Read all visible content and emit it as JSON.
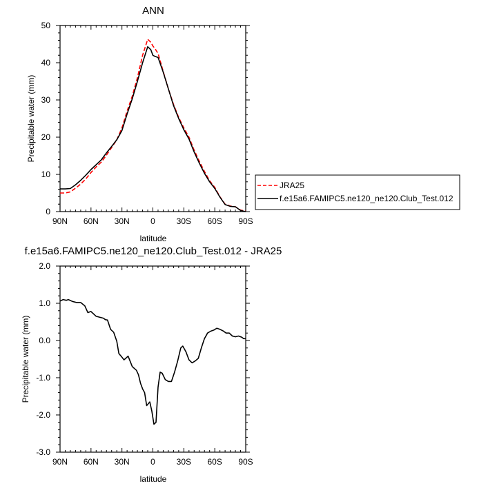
{
  "chart_data": [
    {
      "type": "line",
      "title": "ANN",
      "xlabel": "latitude",
      "ylabel": "Precipitable water (mm)",
      "xlim": [
        90,
        -90
      ],
      "ylim": [
        0,
        50
      ],
      "x_tick_values": [
        90,
        60,
        30,
        0,
        -30,
        -60,
        -90
      ],
      "x_tick_labels": [
        "90N",
        "60N",
        "30N",
        "0",
        "30S",
        "60S",
        "90S"
      ],
      "y_tick_values": [
        0,
        10,
        20,
        30,
        40,
        50
      ],
      "y_tick_labels": [
        "0",
        "10",
        "20",
        "30",
        "40",
        "50"
      ],
      "grid": false,
      "legend_position": "right",
      "series": [
        {
          "name": "JRA25",
          "color": "#ff0000",
          "dash": "dashed",
          "x": [
            90,
            85,
            80,
            75,
            70,
            65,
            60,
            55,
            50,
            45,
            40,
            35,
            30,
            25,
            20,
            15,
            10,
            5,
            2,
            0,
            -2,
            -5,
            -10,
            -15,
            -20,
            -25,
            -30,
            -35,
            -40,
            -45,
            -50,
            -55,
            -60,
            -65,
            -70,
            -75,
            -80,
            -85,
            -90
          ],
          "y": [
            5.0,
            5.0,
            5.3,
            6.3,
            7.4,
            8.8,
            10.5,
            12.0,
            13.3,
            15.2,
            17.2,
            19.3,
            22.5,
            27.0,
            31.0,
            36.0,
            42.0,
            46.3,
            45.5,
            44.5,
            43.8,
            42.5,
            37.7,
            33.0,
            28.8,
            25.3,
            22.5,
            20.0,
            16.5,
            13.5,
            10.8,
            8.3,
            6.5,
            4.0,
            2.0,
            1.5,
            1.3,
            0.4,
            0.1
          ]
        },
        {
          "name": "f.e15a6.FAMIPC5.ne120_ne120.Club_Test.012",
          "color": "#000000",
          "dash": "solid",
          "x": [
            90,
            85,
            80,
            75,
            70,
            65,
            60,
            55,
            50,
            45,
            40,
            35,
            30,
            25,
            20,
            15,
            10,
            5,
            2,
            0,
            -2,
            -5,
            -10,
            -15,
            -20,
            -25,
            -30,
            -35,
            -40,
            -45,
            -50,
            -55,
            -60,
            -65,
            -70,
            -75,
            -80,
            -85,
            -90
          ],
          "y": [
            6.1,
            6.1,
            6.2,
            7.2,
            8.4,
            9.8,
            11.3,
            12.6,
            13.9,
            15.8,
            17.5,
            19.3,
            21.8,
            26.2,
            30.3,
            35.0,
            40.0,
            44.3,
            43.5,
            42.0,
            41.7,
            41.4,
            37.5,
            33.0,
            28.5,
            25.0,
            22.0,
            19.5,
            16.0,
            13.0,
            10.3,
            8.0,
            6.2,
            3.9,
            1.9,
            1.4,
            1.3,
            0.3,
            0.0
          ]
        }
      ]
    },
    {
      "type": "line",
      "title": "f.e15a6.FAMIPC5.ne120_ne120.Club_Test.012 - JRA25",
      "xlabel": "latitude",
      "ylabel": "Precipitable water (mm)",
      "xlim": [
        90,
        -90
      ],
      "ylim": [
        -3.0,
        2.0
      ],
      "x_tick_values": [
        90,
        60,
        30,
        0,
        -30,
        -60,
        -90
      ],
      "x_tick_labels": [
        "90N",
        "60N",
        "30N",
        "0",
        "30S",
        "60S",
        "90S"
      ],
      "y_tick_values": [
        -3.0,
        -2.0,
        -1.0,
        0.0,
        1.0,
        2.0
      ],
      "y_tick_labels": [
        "-3.0",
        "-2.0",
        "-1.0",
        "0.0",
        "1.0",
        "2.0"
      ],
      "grid": false,
      "series": [
        {
          "color": "#000000",
          "dash": "solid",
          "x": [
            90,
            87,
            84,
            82,
            78,
            74,
            70,
            66,
            63,
            60,
            55,
            51,
            48,
            46,
            44,
            41,
            38,
            35,
            33,
            30,
            28,
            26,
            24,
            20,
            16,
            14,
            12,
            10,
            8,
            6,
            3,
            1,
            -1,
            -3,
            -5,
            -7,
            -9,
            -12,
            -15,
            -18,
            -21,
            -24,
            -27,
            -29,
            -32,
            -35,
            -38,
            -41,
            -44,
            -47,
            -50,
            -53,
            -56,
            -59,
            -62,
            -65,
            -68,
            -71,
            -74,
            -77,
            -80,
            -83,
            -86,
            -88,
            -90
          ],
          "y": [
            1.06,
            1.1,
            1.08,
            1.1,
            1.05,
            1.02,
            1.02,
            0.93,
            0.75,
            0.78,
            0.65,
            0.62,
            0.6,
            0.56,
            0.55,
            0.3,
            0.22,
            -0.02,
            -0.35,
            -0.45,
            -0.52,
            -0.47,
            -0.42,
            -0.7,
            -0.8,
            -0.92,
            -1.15,
            -1.3,
            -1.4,
            -1.75,
            -1.65,
            -1.9,
            -2.25,
            -2.2,
            -1.25,
            -0.85,
            -0.88,
            -1.05,
            -1.1,
            -1.1,
            -0.85,
            -0.55,
            -0.2,
            -0.15,
            -0.3,
            -0.52,
            -0.6,
            -0.55,
            -0.48,
            -0.2,
            0.05,
            0.2,
            0.25,
            0.28,
            0.33,
            0.3,
            0.26,
            0.2,
            0.2,
            0.12,
            0.1,
            0.12,
            0.09,
            0.05,
            0.05
          ]
        }
      ]
    }
  ]
}
